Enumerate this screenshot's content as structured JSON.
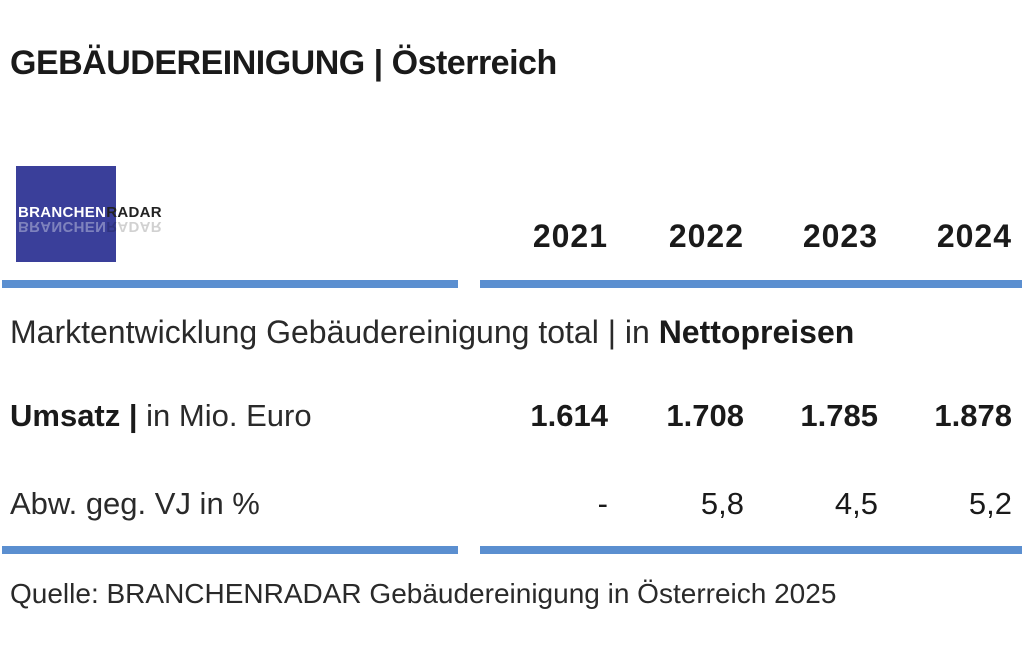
{
  "header": {
    "title_main": "GEBÄUDEREINIGUNG",
    "title_sep": "|",
    "title_country": "Österreich"
  },
  "logo": {
    "part1": "BRANCHEN",
    "part2": "RADAR",
    "color": "#3a3f9a"
  },
  "colors": {
    "rule": "#5b8fd0"
  },
  "chart_data": {
    "type": "table",
    "columns": [
      "2021",
      "2022",
      "2023",
      "2024"
    ],
    "section_label": {
      "text": "Marktentwicklung Gebäudereinigung total | in",
      "emphasis": "Nettopreisen"
    },
    "rows": [
      {
        "label_bold": "Umsatz |",
        "label_rest": "in Mio. Euro",
        "values": [
          "1.614",
          "1.708",
          "1.785",
          "1.878"
        ]
      },
      {
        "label_bold": "",
        "label_rest": "Abw. geg. VJ in %",
        "values": [
          "-",
          "5,8",
          "4,5",
          "5,2"
        ]
      }
    ]
  },
  "footer": {
    "source": "Quelle: BRANCHENRADAR Gebäudereinigung in Österreich 2025"
  }
}
